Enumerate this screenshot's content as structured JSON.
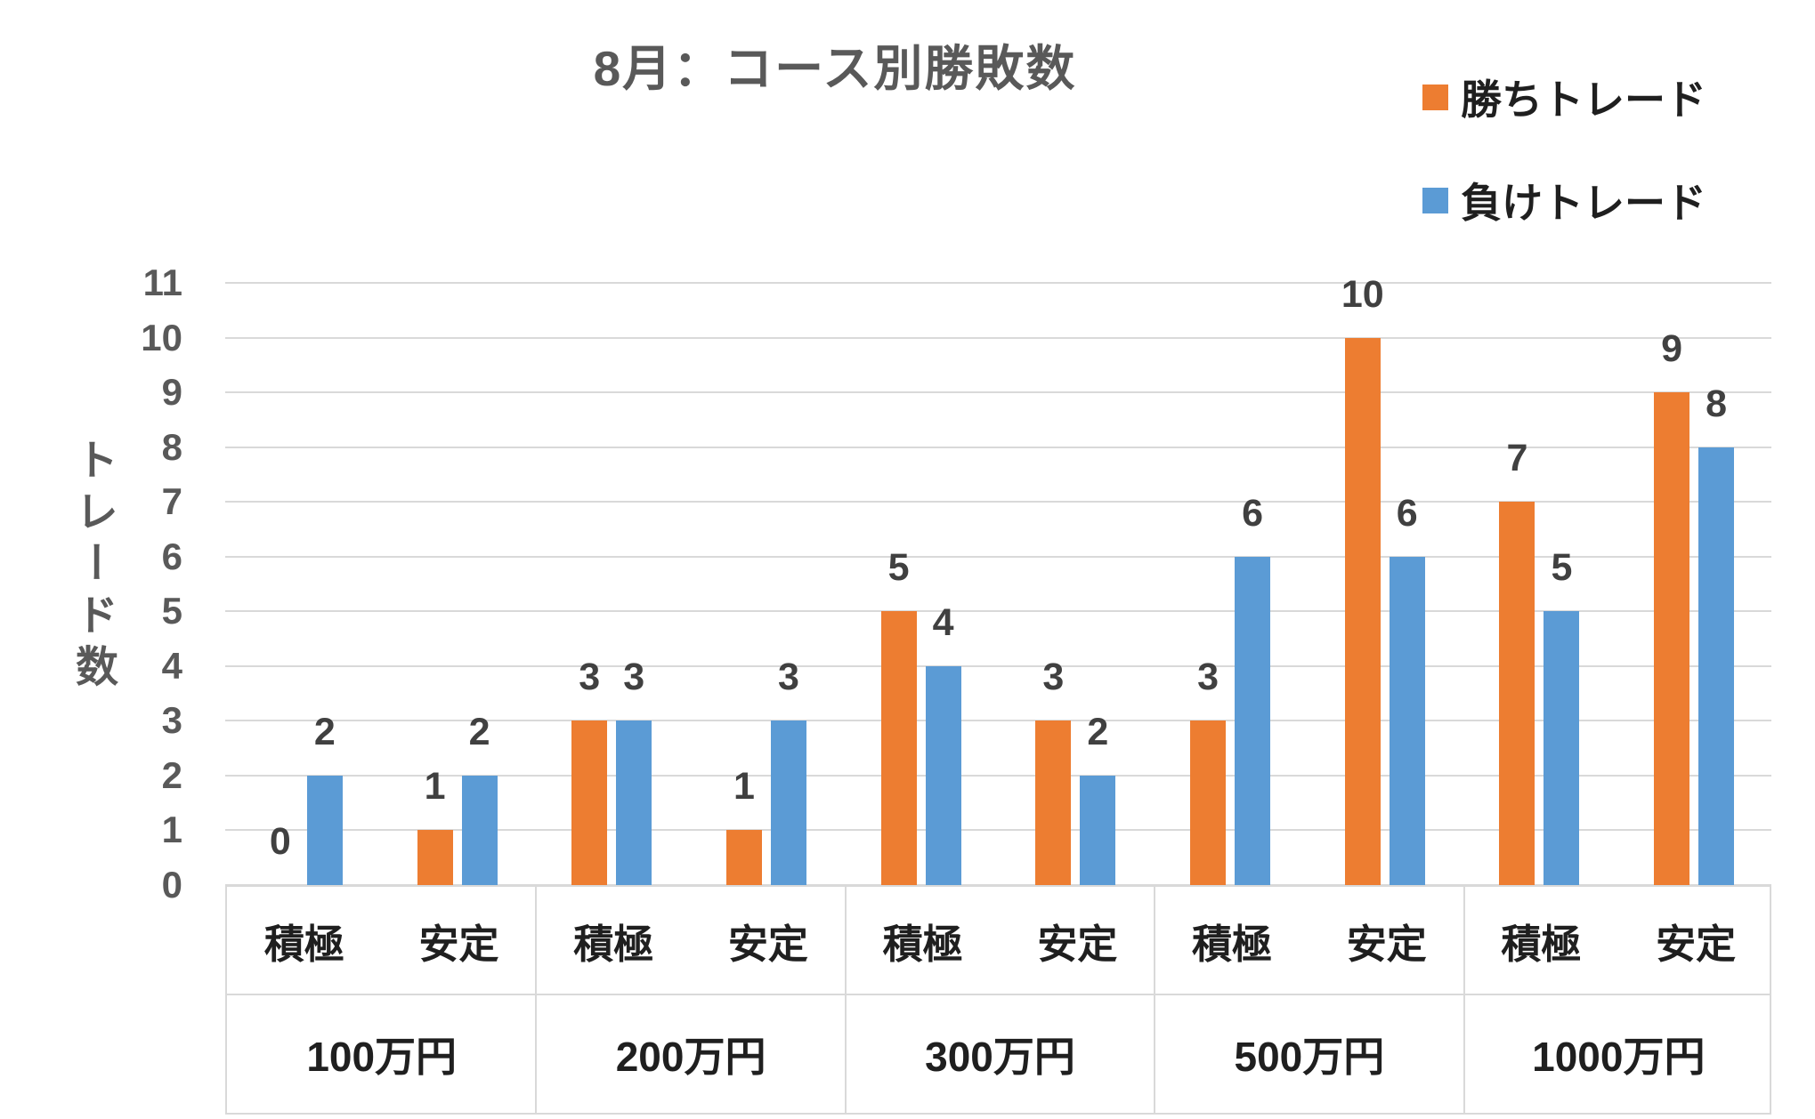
{
  "chart_data": {
    "type": "bar",
    "title": "8月：コース別勝敗数",
    "ylabel": "トレード数",
    "xlabel": "",
    "ylim": [
      0,
      11
    ],
    "ytick_step": 1,
    "grid": true,
    "legend_position": "top-right",
    "group_labels": [
      "100万円",
      "200万円",
      "300万円",
      "500万円",
      "1000万円"
    ],
    "subcategory_labels": [
      "積極",
      "安定"
    ],
    "series": [
      {
        "name": "勝ちトレード",
        "color": "#ED7D31",
        "values": [
          [
            0,
            1
          ],
          [
            3,
            1
          ],
          [
            5,
            3
          ],
          [
            3,
            10
          ],
          [
            7,
            9
          ]
        ]
      },
      {
        "name": "負けトレード",
        "color": "#5B9BD5",
        "values": [
          [
            2,
            2
          ],
          [
            3,
            3
          ],
          [
            4,
            2
          ],
          [
            6,
            6
          ],
          [
            5,
            8
          ]
        ]
      }
    ]
  },
  "legend": [
    {
      "label": "勝ちトレード",
      "color": "#ED7D31"
    },
    {
      "label": "負けトレード",
      "color": "#5B9BD5"
    }
  ],
  "style": {
    "win_color": "#ED7D31",
    "lose_color": "#5B9BD5",
    "title_color": "#595959",
    "axis_text_color": "#595959",
    "data_label_color": "#404040",
    "category_text_color": "#1F1F1F",
    "gridline_color": "#D9D9D9"
  }
}
